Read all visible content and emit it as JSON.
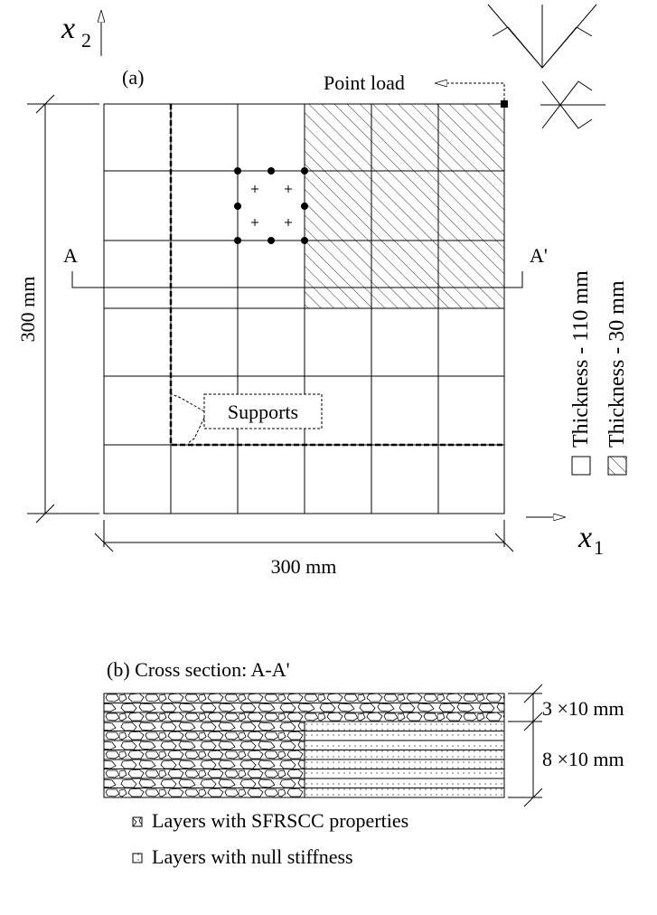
{
  "panel_a": {
    "label": "(a)",
    "axis_x2": {
      "symbol": "x",
      "subscript": "2"
    },
    "axis_x1": {
      "symbol": "x",
      "subscript": "1"
    },
    "point_load": "Point load",
    "section_start": "A",
    "section_end": "A'",
    "height_dimension": "300 mm",
    "width_dimension": "300 mm",
    "supports": "Supports",
    "legend": [
      "Thickness - 110 mm",
      "Thickness - 30 mm"
    ]
  },
  "panel_b": {
    "title": "(b) Cross section: A-A'",
    "dimensions": [
      "3 ×10 mm",
      "8 ×10 mm"
    ],
    "legend": [
      "Layers with SFRSCC properties",
      "Layers with null stiffness"
    ]
  }
}
